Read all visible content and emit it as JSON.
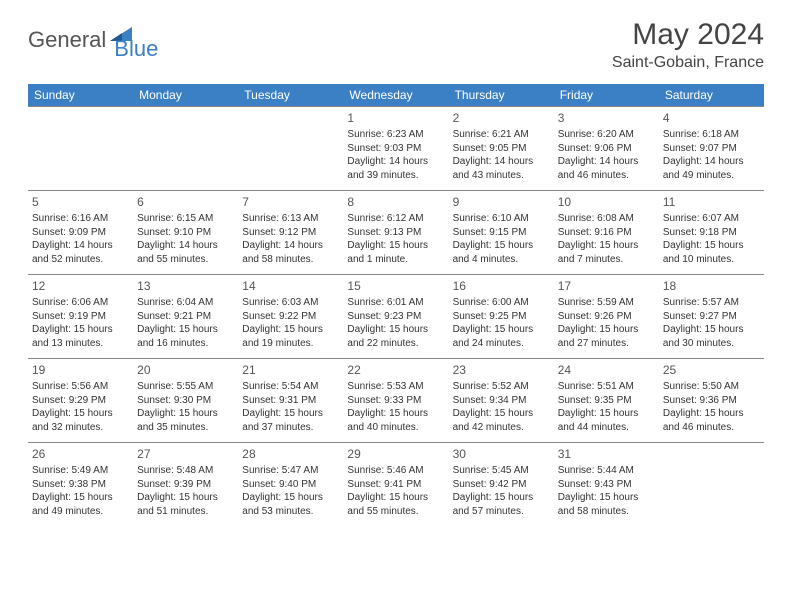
{
  "brand": {
    "part1": "General",
    "part2": "Blue"
  },
  "title": "May 2024",
  "location": "Saint-Gobain, France",
  "colors": {
    "header_bg": "#3b7fc4",
    "header_text": "#ffffff",
    "body_text": "#333333",
    "grid_line": "#888888",
    "logo_gray": "#555555",
    "logo_blue": "#3b7fc4",
    "background": "#ffffff"
  },
  "typography": {
    "title_fontsize": 30,
    "location_fontsize": 16,
    "dayheader_fontsize": 12,
    "daynum_fontsize": 12,
    "body_fontsize": 10
  },
  "day_headers": [
    "Sunday",
    "Monday",
    "Tuesday",
    "Wednesday",
    "Thursday",
    "Friday",
    "Saturday"
  ],
  "weeks": [
    [
      null,
      null,
      null,
      {
        "num": "1",
        "sunrise": "Sunrise: 6:23 AM",
        "sunset": "Sunset: 9:03 PM",
        "daylight": "Daylight: 14 hours and 39 minutes."
      },
      {
        "num": "2",
        "sunrise": "Sunrise: 6:21 AM",
        "sunset": "Sunset: 9:05 PM",
        "daylight": "Daylight: 14 hours and 43 minutes."
      },
      {
        "num": "3",
        "sunrise": "Sunrise: 6:20 AM",
        "sunset": "Sunset: 9:06 PM",
        "daylight": "Daylight: 14 hours and 46 minutes."
      },
      {
        "num": "4",
        "sunrise": "Sunrise: 6:18 AM",
        "sunset": "Sunset: 9:07 PM",
        "daylight": "Daylight: 14 hours and 49 minutes."
      }
    ],
    [
      {
        "num": "5",
        "sunrise": "Sunrise: 6:16 AM",
        "sunset": "Sunset: 9:09 PM",
        "daylight": "Daylight: 14 hours and 52 minutes."
      },
      {
        "num": "6",
        "sunrise": "Sunrise: 6:15 AM",
        "sunset": "Sunset: 9:10 PM",
        "daylight": "Daylight: 14 hours and 55 minutes."
      },
      {
        "num": "7",
        "sunrise": "Sunrise: 6:13 AM",
        "sunset": "Sunset: 9:12 PM",
        "daylight": "Daylight: 14 hours and 58 minutes."
      },
      {
        "num": "8",
        "sunrise": "Sunrise: 6:12 AM",
        "sunset": "Sunset: 9:13 PM",
        "daylight": "Daylight: 15 hours and 1 minute."
      },
      {
        "num": "9",
        "sunrise": "Sunrise: 6:10 AM",
        "sunset": "Sunset: 9:15 PM",
        "daylight": "Daylight: 15 hours and 4 minutes."
      },
      {
        "num": "10",
        "sunrise": "Sunrise: 6:08 AM",
        "sunset": "Sunset: 9:16 PM",
        "daylight": "Daylight: 15 hours and 7 minutes."
      },
      {
        "num": "11",
        "sunrise": "Sunrise: 6:07 AM",
        "sunset": "Sunset: 9:18 PM",
        "daylight": "Daylight: 15 hours and 10 minutes."
      }
    ],
    [
      {
        "num": "12",
        "sunrise": "Sunrise: 6:06 AM",
        "sunset": "Sunset: 9:19 PM",
        "daylight": "Daylight: 15 hours and 13 minutes."
      },
      {
        "num": "13",
        "sunrise": "Sunrise: 6:04 AM",
        "sunset": "Sunset: 9:21 PM",
        "daylight": "Daylight: 15 hours and 16 minutes."
      },
      {
        "num": "14",
        "sunrise": "Sunrise: 6:03 AM",
        "sunset": "Sunset: 9:22 PM",
        "daylight": "Daylight: 15 hours and 19 minutes."
      },
      {
        "num": "15",
        "sunrise": "Sunrise: 6:01 AM",
        "sunset": "Sunset: 9:23 PM",
        "daylight": "Daylight: 15 hours and 22 minutes."
      },
      {
        "num": "16",
        "sunrise": "Sunrise: 6:00 AM",
        "sunset": "Sunset: 9:25 PM",
        "daylight": "Daylight: 15 hours and 24 minutes."
      },
      {
        "num": "17",
        "sunrise": "Sunrise: 5:59 AM",
        "sunset": "Sunset: 9:26 PM",
        "daylight": "Daylight: 15 hours and 27 minutes."
      },
      {
        "num": "18",
        "sunrise": "Sunrise: 5:57 AM",
        "sunset": "Sunset: 9:27 PM",
        "daylight": "Daylight: 15 hours and 30 minutes."
      }
    ],
    [
      {
        "num": "19",
        "sunrise": "Sunrise: 5:56 AM",
        "sunset": "Sunset: 9:29 PM",
        "daylight": "Daylight: 15 hours and 32 minutes."
      },
      {
        "num": "20",
        "sunrise": "Sunrise: 5:55 AM",
        "sunset": "Sunset: 9:30 PM",
        "daylight": "Daylight: 15 hours and 35 minutes."
      },
      {
        "num": "21",
        "sunrise": "Sunrise: 5:54 AM",
        "sunset": "Sunset: 9:31 PM",
        "daylight": "Daylight: 15 hours and 37 minutes."
      },
      {
        "num": "22",
        "sunrise": "Sunrise: 5:53 AM",
        "sunset": "Sunset: 9:33 PM",
        "daylight": "Daylight: 15 hours and 40 minutes."
      },
      {
        "num": "23",
        "sunrise": "Sunrise: 5:52 AM",
        "sunset": "Sunset: 9:34 PM",
        "daylight": "Daylight: 15 hours and 42 minutes."
      },
      {
        "num": "24",
        "sunrise": "Sunrise: 5:51 AM",
        "sunset": "Sunset: 9:35 PM",
        "daylight": "Daylight: 15 hours and 44 minutes."
      },
      {
        "num": "25",
        "sunrise": "Sunrise: 5:50 AM",
        "sunset": "Sunset: 9:36 PM",
        "daylight": "Daylight: 15 hours and 46 minutes."
      }
    ],
    [
      {
        "num": "26",
        "sunrise": "Sunrise: 5:49 AM",
        "sunset": "Sunset: 9:38 PM",
        "daylight": "Daylight: 15 hours and 49 minutes."
      },
      {
        "num": "27",
        "sunrise": "Sunrise: 5:48 AM",
        "sunset": "Sunset: 9:39 PM",
        "daylight": "Daylight: 15 hours and 51 minutes."
      },
      {
        "num": "28",
        "sunrise": "Sunrise: 5:47 AM",
        "sunset": "Sunset: 9:40 PM",
        "daylight": "Daylight: 15 hours and 53 minutes."
      },
      {
        "num": "29",
        "sunrise": "Sunrise: 5:46 AM",
        "sunset": "Sunset: 9:41 PM",
        "daylight": "Daylight: 15 hours and 55 minutes."
      },
      {
        "num": "30",
        "sunrise": "Sunrise: 5:45 AM",
        "sunset": "Sunset: 9:42 PM",
        "daylight": "Daylight: 15 hours and 57 minutes."
      },
      {
        "num": "31",
        "sunrise": "Sunrise: 5:44 AM",
        "sunset": "Sunset: 9:43 PM",
        "daylight": "Daylight: 15 hours and 58 minutes."
      },
      null
    ]
  ]
}
